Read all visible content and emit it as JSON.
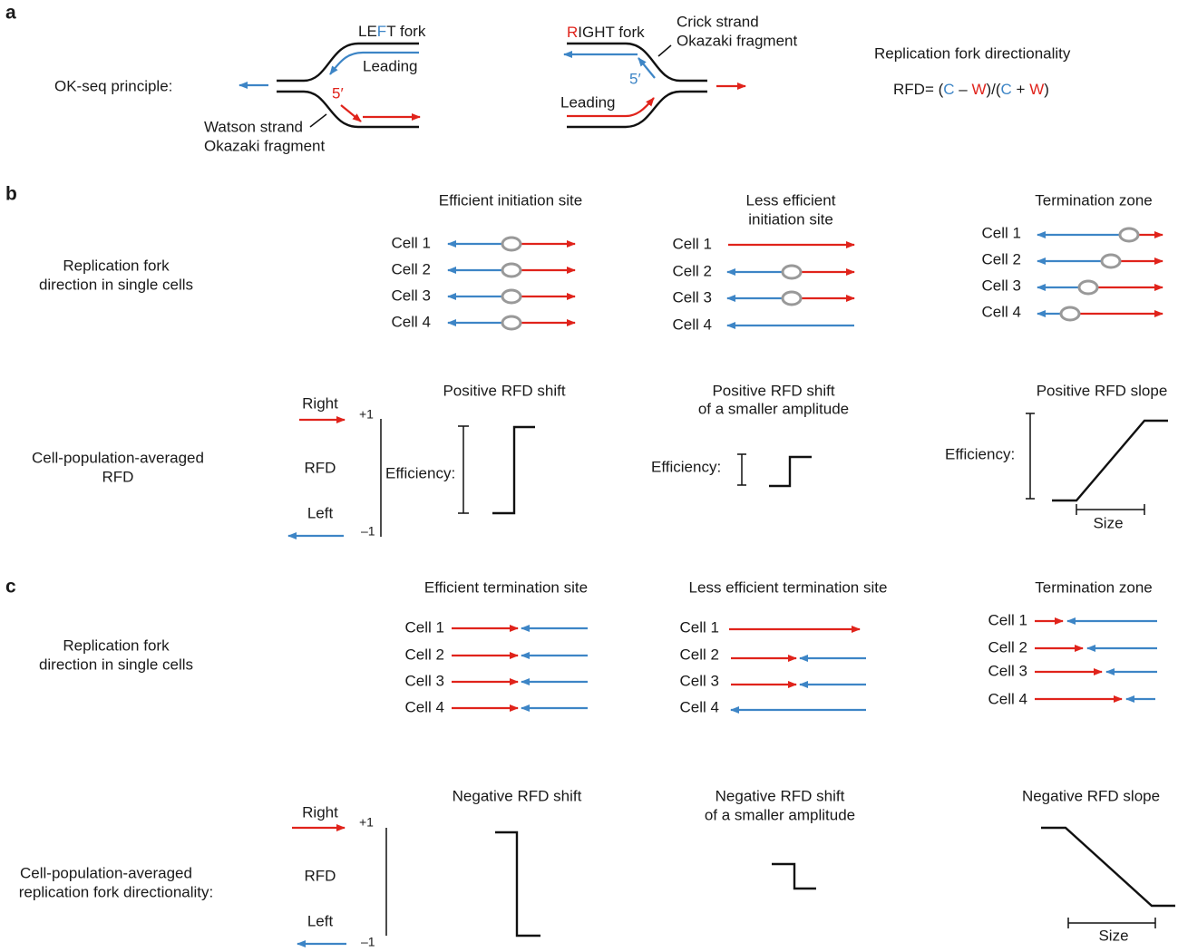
{
  "panel_a": {
    "label": "a",
    "principle": "OK-seq principle:",
    "left_fork": {
      "title": [
        "LE",
        "F",
        "T fork"
      ],
      "leading": "Leading",
      "five_prime": "5′",
      "strand": "Watson strand",
      "fragment": "Okazaki fragment"
    },
    "right_fork": {
      "title": [
        "R",
        "IGHT fork"
      ],
      "strand": "Crick strand",
      "fragment": "Okazaki fragment",
      "five_prime": "5′",
      "leading": "Leading"
    },
    "rfd_title": "Replication fork directionality",
    "rfd_formula": [
      "RFD= (",
      "C",
      " – ",
      "W",
      ")/(",
      "C",
      " + ",
      "W",
      ")"
    ]
  },
  "panel_b": {
    "label": "b",
    "single_cells": [
      "Replication fork",
      "direction in single cells"
    ],
    "efficient": {
      "title": [
        "Efficient initiation site"
      ],
      "cells": [
        "Cell 1",
        "Cell 2",
        "Cell 3",
        "Cell 4"
      ]
    },
    "less_efficient": {
      "title": [
        "Less efficient",
        "initiation site"
      ],
      "cells": [
        "Cell 1",
        "Cell 2",
        "Cell 3",
        "Cell 4"
      ]
    },
    "zone": {
      "title": [
        "Termination zone"
      ],
      "cells": [
        "Cell 1",
        "Cell 2",
        "Cell 3",
        "Cell 4"
      ]
    },
    "averaged": [
      "Cell-population-averaged",
      "RFD"
    ],
    "axis": {
      "right": "Right",
      "rfd": "RFD",
      "left": "Left",
      "plus": "+1",
      "minus": "–1"
    },
    "shift": {
      "title": [
        "Positive RFD shift"
      ],
      "efficiency": "Efficiency:"
    },
    "small_shift": {
      "title": [
        "Positive RFD shift",
        "of a smaller amplitude"
      ],
      "efficiency": "Efficiency:"
    },
    "slope": {
      "title": [
        "Positive RFD slope"
      ],
      "efficiency": "Efficiency:",
      "size": "Size"
    }
  },
  "panel_c": {
    "label": "c",
    "single_cells": [
      "Replication fork",
      "direction in single cells"
    ],
    "efficient": {
      "title": [
        "Efficient termination site"
      ],
      "cells": [
        "Cell 1",
        "Cell 2",
        "Cell 3",
        "Cell 4"
      ]
    },
    "less_efficient": {
      "title": [
        "Less efficient termination site"
      ],
      "cells": [
        "Cell 1",
        "Cell 2",
        "Cell 3",
        "Cell 4"
      ]
    },
    "zone": {
      "title": [
        "Termination zone"
      ],
      "cells": [
        "Cell 1",
        "Cell 2",
        "Cell 3",
        "Cell 4"
      ]
    },
    "averaged": [
      "Cell-population-averaged",
      "replication fork directionality:"
    ],
    "axis": {
      "right": "Right",
      "rfd": "RFD",
      "left": "Left",
      "plus": "+1",
      "minus": "–1"
    },
    "shift": {
      "title": [
        "Negative RFD shift"
      ]
    },
    "small_shift": {
      "title": [
        "Negative RFD shift",
        "of a smaller amplitude"
      ]
    },
    "slope": {
      "title": [
        "Negative RFD slope"
      ],
      "size": "Size"
    }
  }
}
